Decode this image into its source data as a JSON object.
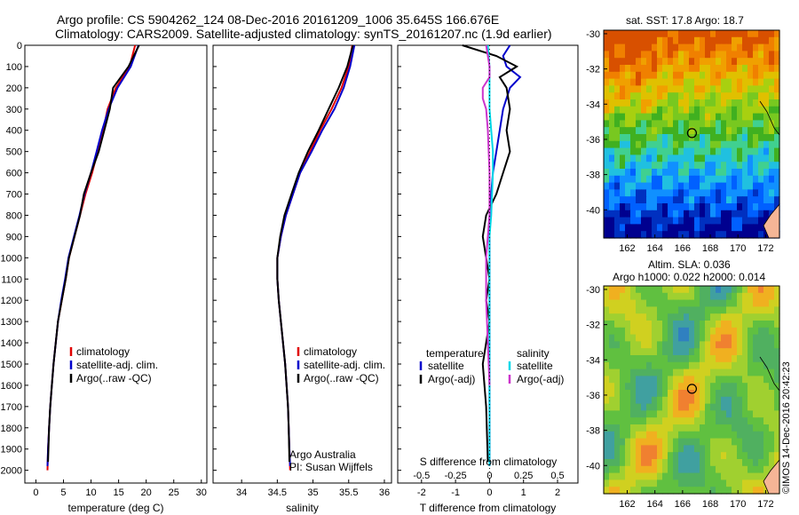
{
  "header": {
    "line1": "Argo profile: CS 5904262_124 08-Dec-2016 20161209_1006 35.645S 166.676E",
    "line2": "Climatology: CARS2009. Satellite-adjusted climatology: synTS_20161207.nc (1.9d earlier)"
  },
  "sst_map": {
    "title": "sat. SST: 17.8 Argo: 18.7"
  },
  "sla_map": {
    "title1": "Altim. SLA: 0.036",
    "title2": "Argo h1000: 0.022 h2000: 0.014"
  },
  "credit": "©IMOS 14-Dec-2016 20:42:23",
  "colors": {
    "climatology": "#e00000",
    "satellite": "#0000cc",
    "argo": "#000000",
    "sal_satellite": "#00d8e8",
    "sal_argo": "#cc33cc",
    "land": "#f5b596"
  },
  "chart_data": [
    {
      "type": "line",
      "id": "temperature",
      "xlabel": "temperature (deg C)",
      "ylabel": "",
      "xlim": [
        -2,
        31
      ],
      "ylim": [
        2060,
        0
      ],
      "xticks": [
        0,
        5,
        10,
        15,
        20,
        25,
        30
      ],
      "yticks": [
        0,
        100,
        200,
        300,
        400,
        500,
        600,
        700,
        800,
        900,
        1000,
        1100,
        1200,
        1300,
        1400,
        1500,
        1600,
        1700,
        1800,
        1900,
        2000
      ],
      "legend": [
        "climatology",
        "satellite-adj. clim.",
        "Argo(..raw -QC)"
      ],
      "series": [
        {
          "name": "climatology",
          "x": [
            18.0,
            17.0,
            14.5,
            13.0,
            12.2,
            11.2,
            10.2,
            9.0,
            8.0,
            7.0,
            6.0,
            5.4,
            4.7,
            4.0,
            3.6,
            3.2,
            2.9,
            2.6,
            2.4,
            2.2,
            2.1
          ],
          "y": [
            0,
            100,
            200,
            300,
            400,
            500,
            600,
            700,
            800,
            900,
            1000,
            1100,
            1200,
            1300,
            1400,
            1500,
            1600,
            1700,
            1800,
            1900,
            2000
          ]
        },
        {
          "name": "satellite-adj. clim.",
          "x": [
            18.6,
            17.2,
            14.8,
            13.2,
            12.0,
            11.0,
            10.0,
            8.8,
            7.9,
            6.9,
            5.9,
            5.3,
            4.6,
            4.0,
            3.6,
            3.2,
            2.9,
            2.6,
            2.4,
            2.2,
            2.1
          ],
          "y": [
            0,
            100,
            200,
            300,
            400,
            500,
            600,
            700,
            800,
            900,
            1000,
            1100,
            1200,
            1300,
            1400,
            1500,
            1600,
            1700,
            1800,
            1900,
            1980
          ]
        },
        {
          "name": "Argo(..raw -QC)",
          "x": [
            18.7,
            16.8,
            14.0,
            13.4,
            12.4,
            11.4,
            10.0,
            8.7,
            8.0,
            7.0,
            6.0,
            5.4,
            4.7,
            4.0,
            3.6,
            3.2,
            2.9,
            2.6,
            2.4,
            2.2
          ],
          "y": [
            0,
            100,
            200,
            300,
            400,
            500,
            600,
            700,
            800,
            900,
            1000,
            1100,
            1200,
            1300,
            1400,
            1500,
            1600,
            1700,
            1800,
            1960
          ]
        }
      ]
    },
    {
      "type": "line",
      "id": "salinity",
      "xlabel": "salinity",
      "xlim": [
        33.6,
        36.1
      ],
      "ylim": [
        2060,
        0
      ],
      "xticks": [
        34,
        34.5,
        35,
        35.5,
        36
      ],
      "legend": [
        "climatology",
        "satellite-adj. clim.",
        "Argo(..raw -QC)"
      ],
      "annotation": [
        "Argo Australia",
        "PI: Susan Wijffels"
      ],
      "series": [
        {
          "name": "climatology",
          "x": [
            35.55,
            35.5,
            35.4,
            35.26,
            35.1,
            34.96,
            34.82,
            34.72,
            34.62,
            34.55,
            34.5,
            34.5,
            34.52,
            34.55,
            34.58,
            34.61,
            34.63,
            34.65,
            34.66,
            34.67,
            34.68
          ],
          "y": [
            0,
            100,
            200,
            300,
            400,
            500,
            600,
            700,
            800,
            900,
            1000,
            1100,
            1200,
            1300,
            1400,
            1500,
            1600,
            1700,
            1800,
            1900,
            2000
          ]
        },
        {
          "name": "satellite-adj. clim.",
          "x": [
            35.58,
            35.52,
            35.43,
            35.3,
            35.13,
            34.98,
            34.82,
            34.72,
            34.62,
            34.55,
            34.5,
            34.5,
            34.52,
            34.55,
            34.58,
            34.61,
            34.63,
            34.65,
            34.66,
            34.67,
            34.68
          ],
          "y": [
            0,
            100,
            200,
            300,
            400,
            500,
            600,
            700,
            800,
            900,
            1000,
            1100,
            1200,
            1300,
            1400,
            1500,
            1600,
            1700,
            1800,
            1900,
            1980
          ]
        },
        {
          "name": "Argo(..raw -QC)",
          "x": [
            35.56,
            35.48,
            35.36,
            35.22,
            35.08,
            34.93,
            34.8,
            34.7,
            34.6,
            34.54,
            34.5,
            34.5,
            34.52,
            34.55,
            34.58,
            34.61,
            34.63,
            34.65,
            34.66,
            34.67
          ],
          "y": [
            0,
            100,
            200,
            300,
            400,
            500,
            600,
            700,
            800,
            900,
            1000,
            1100,
            1200,
            1300,
            1400,
            1500,
            1600,
            1700,
            1800,
            1960
          ]
        }
      ]
    },
    {
      "type": "line",
      "id": "differences",
      "xlabel": "T difference from climatology",
      "xlabel2": "S difference from climatology",
      "xlim": [
        -2.7,
        2.6
      ],
      "ylim": [
        2060,
        0
      ],
      "xticks": [
        -2,
        -1,
        0,
        1,
        2
      ],
      "xticks_s": [
        "-0.5",
        "-0.25",
        "0",
        "0.25",
        "0.5"
      ],
      "legend_t_title": "temperature",
      "legend_s_title": "salinity",
      "legend": [
        "satellite",
        "Argo(-adj)",
        "satellite",
        "Argo(-adj)"
      ],
      "series": [
        {
          "name": "temperature satellite",
          "x": [
            0.6,
            0.4,
            0.5,
            0.9,
            0.6,
            0.4,
            0.3,
            0.2,
            0.1,
            0.05,
            0.0,
            0.0,
            0.0,
            0.0,
            0.0,
            0.0,
            0.0,
            0.0,
            0.0,
            0.0,
            0.0
          ],
          "y": [
            0,
            50,
            100,
            150,
            200,
            300,
            400,
            500,
            600,
            700,
            800,
            900,
            1000,
            1100,
            1200,
            1300,
            1400,
            1500,
            1600,
            1800,
            1980
          ]
        },
        {
          "name": "temperature Argo(-adj)",
          "x": [
            -0.8,
            0.2,
            0.8,
            0.3,
            0.5,
            0.6,
            0.5,
            0.6,
            0.4,
            0.2,
            -0.1,
            -0.2,
            -0.1,
            0.0,
            -0.1,
            0.0,
            -0.1,
            -0.2,
            -0.1,
            -0.05
          ],
          "y": [
            0,
            50,
            100,
            150,
            200,
            300,
            400,
            500,
            600,
            700,
            800,
            900,
            1000,
            1100,
            1200,
            1300,
            1400,
            1500,
            1700,
            1960
          ]
        },
        {
          "name": "salinity satellite",
          "x": [
            -0.05,
            0.0,
            0.0,
            0.0,
            0.05,
            0.1,
            0.1,
            0.05,
            0.0,
            0.0,
            0.0,
            0.0,
            0.0,
            0.0,
            0.0,
            0.0
          ],
          "y": [
            0,
            100,
            200,
            300,
            400,
            500,
            600,
            800,
            900,
            1000,
            1200,
            1400,
            1600,
            1800,
            1900,
            1980
          ]
        },
        {
          "name": "salinity Argo(-adj)",
          "x": [
            -0.1,
            0.0,
            0.0,
            -0.2,
            -0.2,
            -0.1,
            -0.05,
            0.0,
            0.0,
            -0.1,
            -0.1,
            -0.05,
            0.0
          ],
          "y": [
            0,
            100,
            150,
            200,
            250,
            300,
            400,
            600,
            800,
            1000,
            1200,
            1400,
            1600
          ]
        }
      ]
    },
    {
      "type": "heatmap",
      "id": "sst_map",
      "xticks": [
        162,
        164,
        166,
        168,
        170,
        172
      ],
      "yticks": [
        -30,
        -32,
        -34,
        -36,
        -38,
        -40
      ],
      "xlim": [
        160.3,
        173
      ],
      "ylim": [
        -41.6,
        -29.8
      ],
      "argo_position": [
        166.676,
        -35.645
      ]
    },
    {
      "type": "heatmap",
      "id": "sla_map",
      "xticks": [
        162,
        164,
        166,
        168,
        170,
        172
      ],
      "yticks": [
        -30,
        -32,
        -34,
        -36,
        -38,
        -40
      ],
      "xlim": [
        160.3,
        173
      ],
      "ylim": [
        -41.6,
        -29.8
      ],
      "argo_position": [
        166.676,
        -35.645
      ]
    }
  ]
}
